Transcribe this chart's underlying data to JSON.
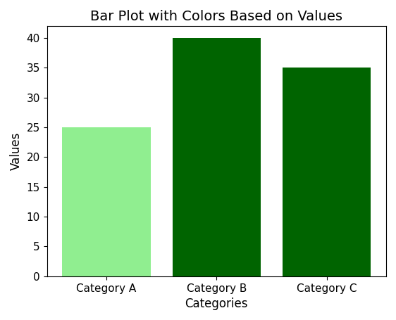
{
  "categories": [
    "Category A",
    "Category B",
    "Category C"
  ],
  "values": [
    25,
    40,
    35
  ],
  "bar_colors": [
    "#90EE90",
    "#006400",
    "#006400"
  ],
  "title": "Bar Plot with Colors Based on Values",
  "xlabel": "Categories",
  "ylabel": "Values",
  "ylim": [
    0,
    42
  ],
  "title_fontsize": 14,
  "label_fontsize": 12,
  "tick_fontsize": 11,
  "background_color": "#ffffff",
  "figsize": [
    5.62,
    4.55
  ],
  "dpi": 100
}
